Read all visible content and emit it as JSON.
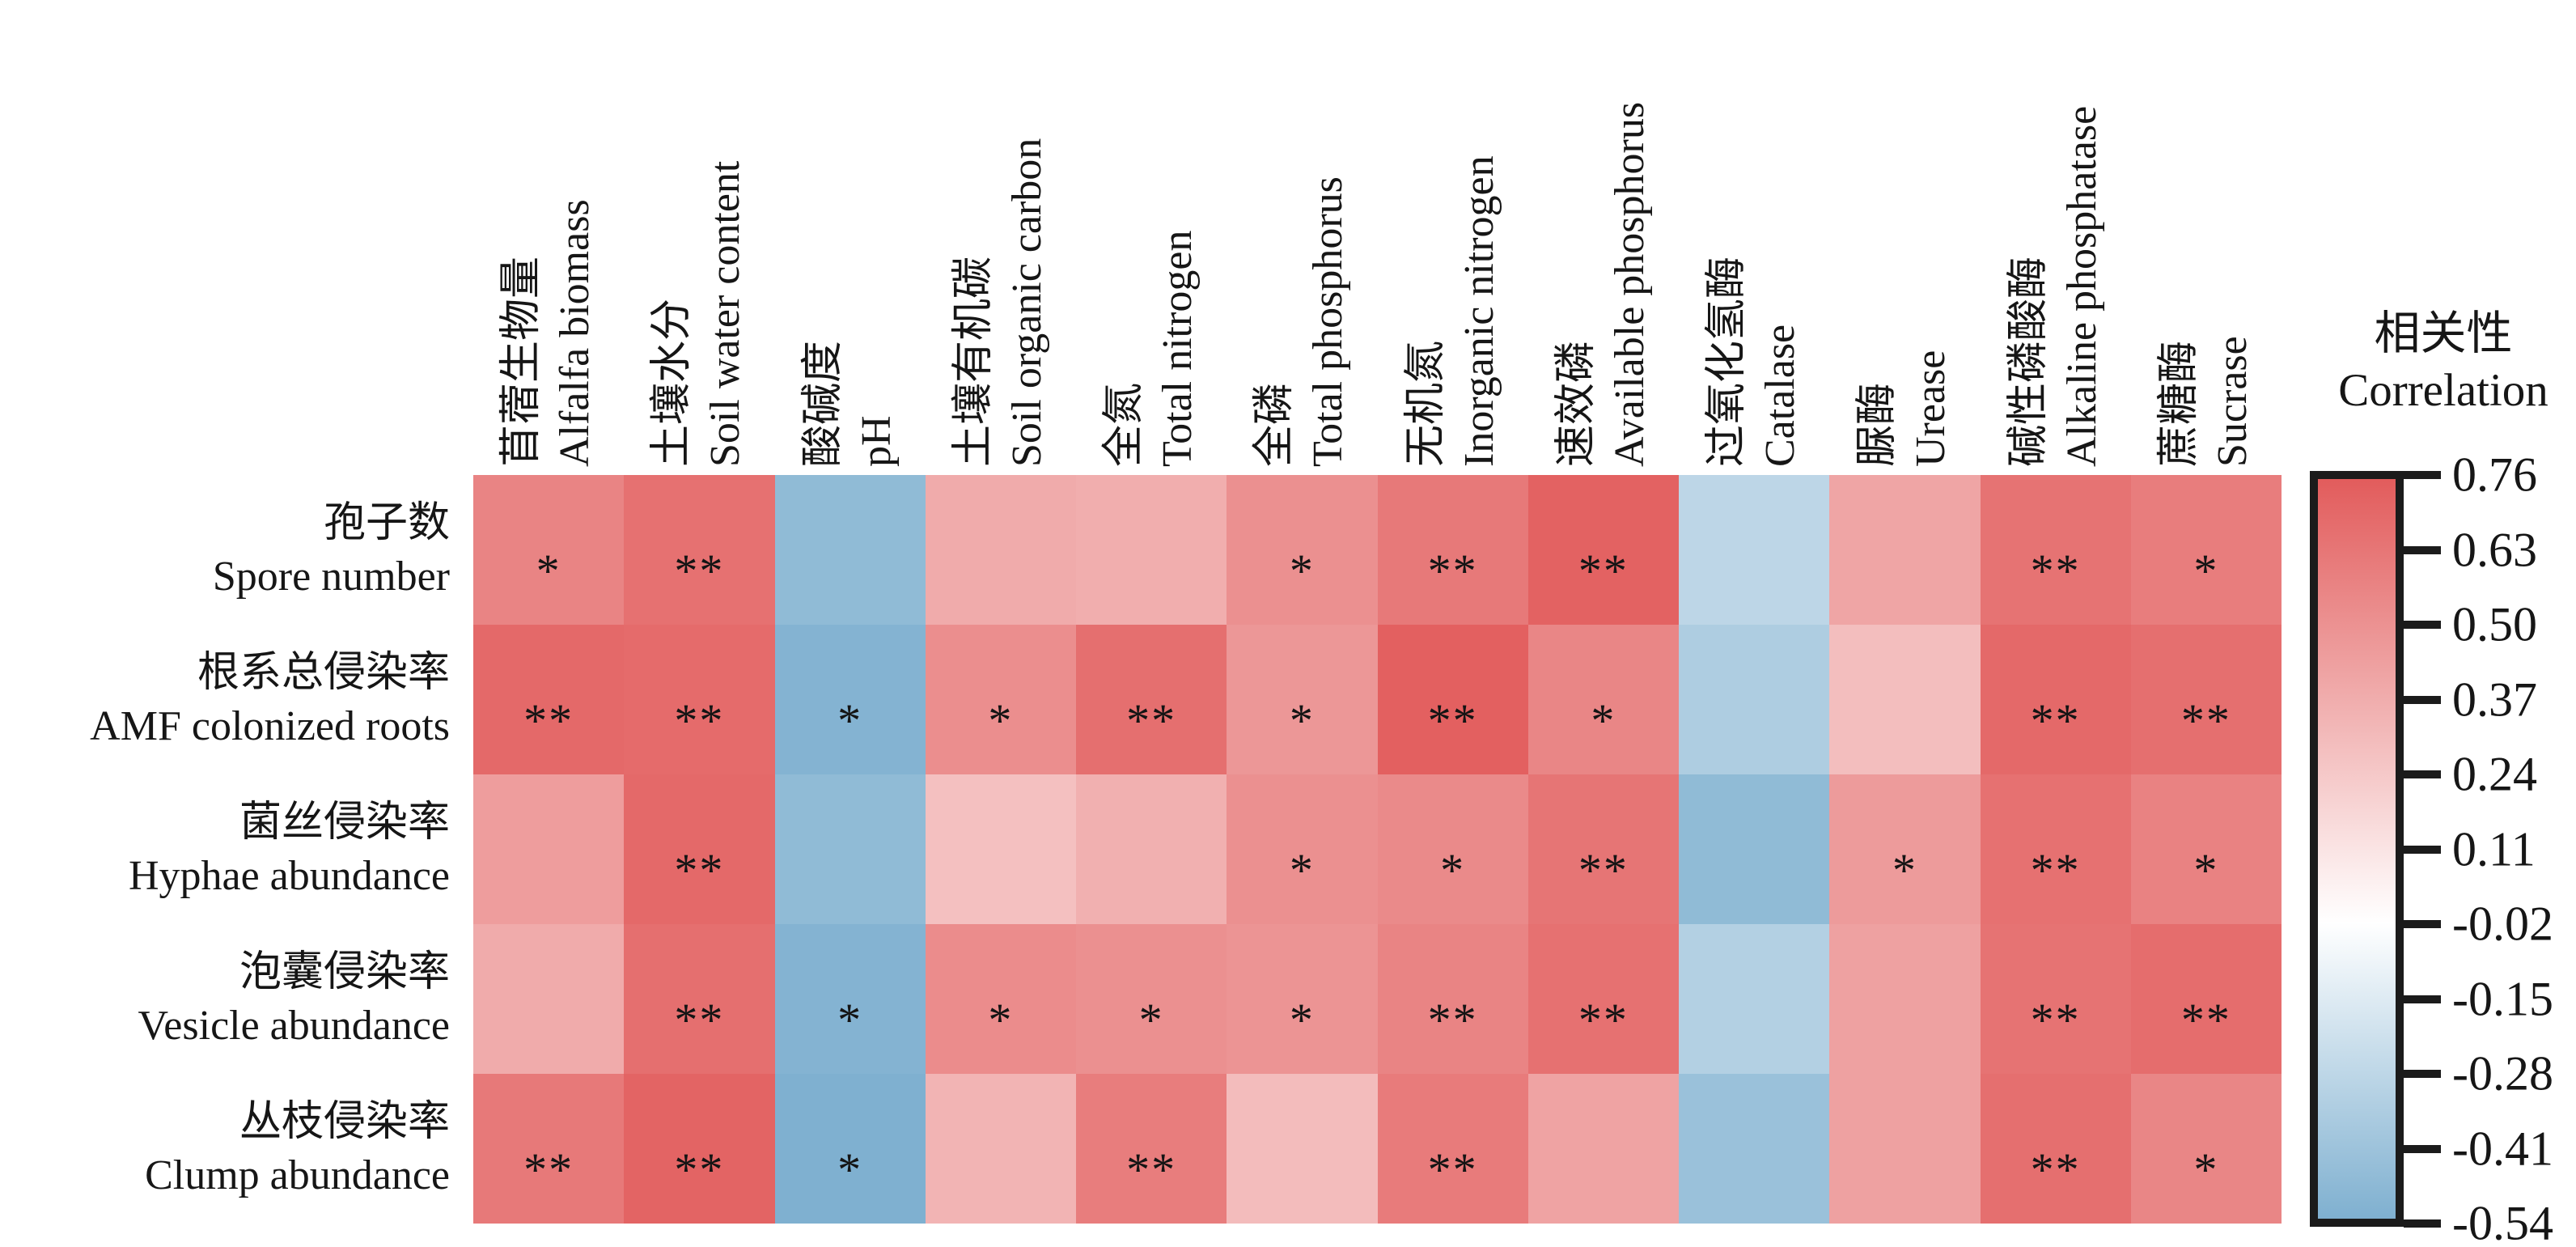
{
  "legend": {
    "title_zh": "相关性",
    "title_en": "Correlation"
  },
  "chart_data": {
    "type": "heatmap",
    "columns": [
      {
        "zh": "苜蓿生物量",
        "en": "Alfalfa biomass"
      },
      {
        "zh": "土壤水分",
        "en": "Soil water content"
      },
      {
        "zh": "酸碱度",
        "en": "pH"
      },
      {
        "zh": "土壤有机碳",
        "en": "Soil organic carbon"
      },
      {
        "zh": "全氮",
        "en": "Total nitrogen"
      },
      {
        "zh": "全磷",
        "en": "Total phosphorus"
      },
      {
        "zh": "无机氮",
        "en": "Inorganic nitrogen"
      },
      {
        "zh": "速效磷",
        "en": "Available phosphorus"
      },
      {
        "zh": "过氧化氢酶",
        "en": "Catalase"
      },
      {
        "zh": "脲酶",
        "en": "Urease"
      },
      {
        "zh": "碱性磷酸酶",
        "en": "Alkaline phosphatase"
      },
      {
        "zh": "蔗糖酶",
        "en": "Sucrase"
      }
    ],
    "rows": [
      {
        "zh": "孢子数",
        "en": "Spore number"
      },
      {
        "zh": "根系总侵染率",
        "en": "AMF colonized roots"
      },
      {
        "zh": "菌丝侵染率",
        "en": "Hyphae abundance"
      },
      {
        "zh": "泡囊侵染率",
        "en": "Vesicle abundance"
      },
      {
        "zh": "丛枝侵染率",
        "en": "Clump abundance"
      }
    ],
    "values": [
      [
        0.57,
        0.66,
        -0.47,
        0.38,
        0.37,
        0.51,
        0.62,
        0.73,
        -0.29,
        0.41,
        0.65,
        0.6
      ],
      [
        0.7,
        0.69,
        -0.52,
        0.52,
        0.67,
        0.48,
        0.74,
        0.56,
        -0.35,
        0.29,
        0.7,
        0.67
      ],
      [
        0.45,
        0.7,
        -0.47,
        0.28,
        0.36,
        0.51,
        0.54,
        0.64,
        -0.47,
        0.46,
        0.66,
        0.58
      ],
      [
        0.38,
        0.67,
        -0.52,
        0.53,
        0.51,
        0.49,
        0.57,
        0.66,
        -0.33,
        0.43,
        0.65,
        0.68
      ],
      [
        0.62,
        0.72,
        -0.54,
        0.34,
        0.6,
        0.3,
        0.61,
        0.42,
        -0.43,
        0.43,
        0.67,
        0.56
      ]
    ],
    "significance": [
      [
        "*",
        "**",
        "",
        "",
        "",
        "*",
        "**",
        "**",
        "",
        "",
        "**",
        "*"
      ],
      [
        "**",
        "**",
        "*",
        "*",
        "**",
        "*",
        "**",
        "*",
        "",
        "",
        "**",
        "**"
      ],
      [
        "",
        "**",
        "",
        "",
        "",
        "*",
        "*",
        "**",
        "",
        "*",
        "**",
        "*"
      ],
      [
        "",
        "**",
        "*",
        "*",
        "*",
        "*",
        "**",
        "**",
        "",
        "",
        "**",
        "**"
      ],
      [
        "**",
        "**",
        "*",
        "",
        "**",
        "",
        "**",
        "",
        "",
        "",
        "**",
        "*"
      ]
    ],
    "colorbar": {
      "title_zh": "相关性",
      "title_en": "Correlation",
      "tick_labels": [
        "0.76",
        "0.63",
        "0.50",
        "0.37",
        "0.24",
        "0.11",
        "-0.02",
        "-0.15",
        "-0.28",
        "-0.41",
        "-0.54"
      ],
      "vmax": 0.76,
      "white_at": -0.02,
      "vmin": -0.54,
      "color_max": "#e25c5c",
      "color_mid": "#ffffff",
      "color_min": "#7fb0d0"
    }
  }
}
